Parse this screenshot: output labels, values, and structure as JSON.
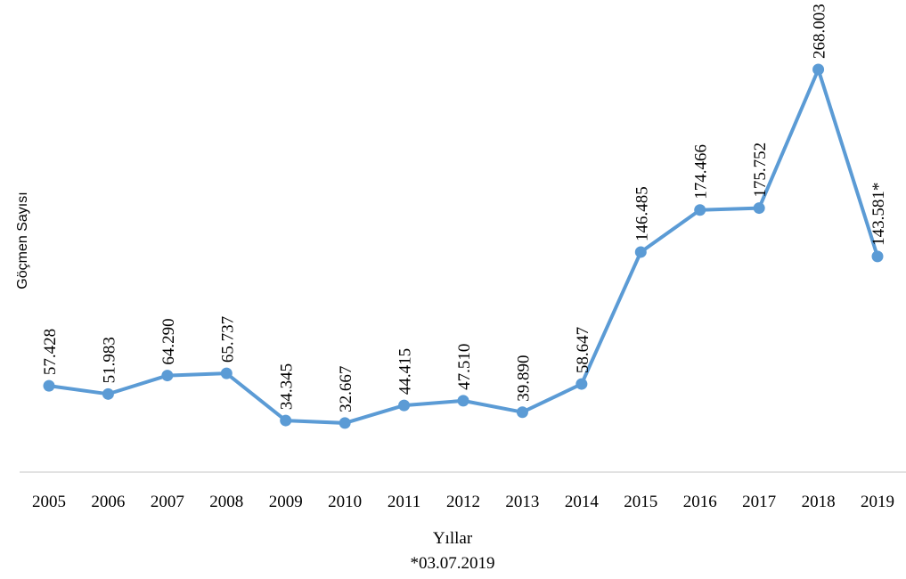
{
  "chart_data": {
    "type": "line",
    "y_label": "Göçmen Sayısı",
    "x_label": "Yıllar",
    "note": "*03.07.2019",
    "categories": [
      "2005",
      "2006",
      "2007",
      "2008",
      "2009",
      "2010",
      "2011",
      "2012",
      "2013",
      "2014",
      "2015",
      "2016",
      "2017",
      "2018",
      "2019"
    ],
    "series": [
      {
        "name": "Göçmen Sayısı",
        "color": "#5b9bd5",
        "values": [
          57428,
          51983,
          64290,
          65737,
          34345,
          32667,
          44415,
          47510,
          39890,
          58647,
          146485,
          174466,
          175752,
          268003,
          143581
        ],
        "value_labels": [
          "57.428",
          "51.983",
          "64.290",
          "65.737",
          "34.345",
          "32.667",
          "44.415",
          "47.510",
          "39.890",
          "58.647",
          "146.485",
          "174.466",
          "175.752",
          "268.003",
          "143.581*"
        ]
      }
    ]
  }
}
